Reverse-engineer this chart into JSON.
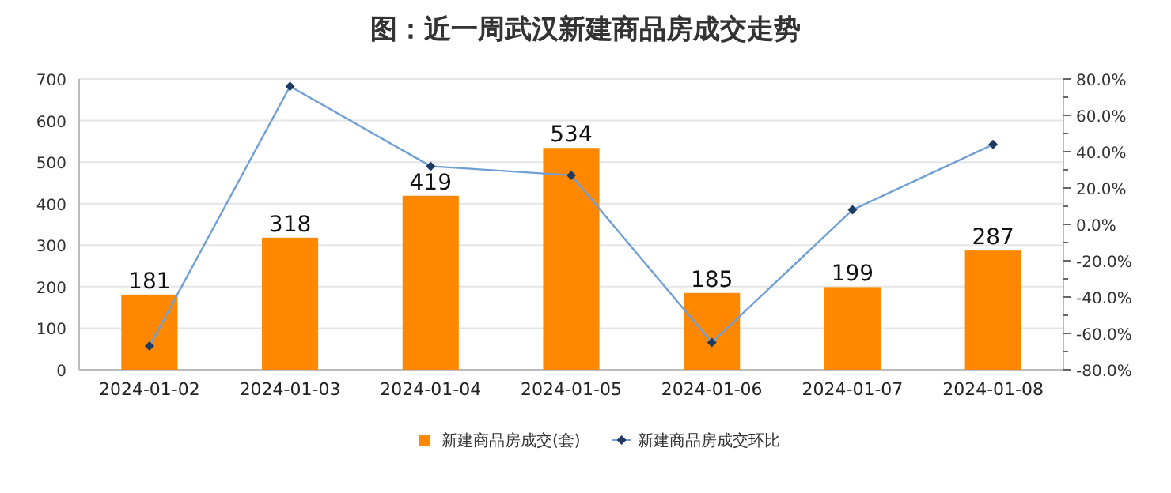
{
  "chart_data": {
    "type": "bar",
    "title": "图：近一周武汉新建商品房成交走势",
    "categories": [
      "2024-01-02",
      "2024-01-03",
      "2024-01-04",
      "2024-01-05",
      "2024-01-06",
      "2024-01-07",
      "2024-01-08"
    ],
    "series": [
      {
        "name": "新建商品房成交(套)",
        "color": "#ff8800",
        "values": [
          181,
          318,
          419,
          534,
          185,
          199,
          287
        ],
        "value_labels": [
          "181",
          "318",
          "419",
          "534",
          "185",
          "199",
          "287"
        ]
      },
      {
        "name": "新建商品房成交环比",
        "type": "line",
        "axis": "y2",
        "color": "#6f9fd4",
        "marker": "diamond",
        "values": [
          -67,
          76,
          32,
          27,
          -65,
          8,
          44
        ]
      }
    ],
    "ylim": [
      0,
      700
    ],
    "yticks": [
      0,
      100,
      200,
      300,
      400,
      500,
      600,
      700
    ],
    "y2lim": [
      -80,
      80
    ],
    "y2ticks": [
      {
        "value": -80,
        "label": "-80.0%"
      },
      {
        "value": -60,
        "label": "-60.0%"
      },
      {
        "value": -40,
        "label": "-40.0%"
      },
      {
        "value": -20,
        "label": "-20.0%"
      },
      {
        "value": 0,
        "label": "0.0%"
      },
      {
        "value": 20,
        "label": "20.0%"
      },
      {
        "value": 40,
        "label": "40.0%"
      },
      {
        "value": 60,
        "label": "60.0%"
      },
      {
        "value": 80,
        "label": "80.0%"
      }
    ],
    "grid": "y",
    "legend": "bottom"
  }
}
